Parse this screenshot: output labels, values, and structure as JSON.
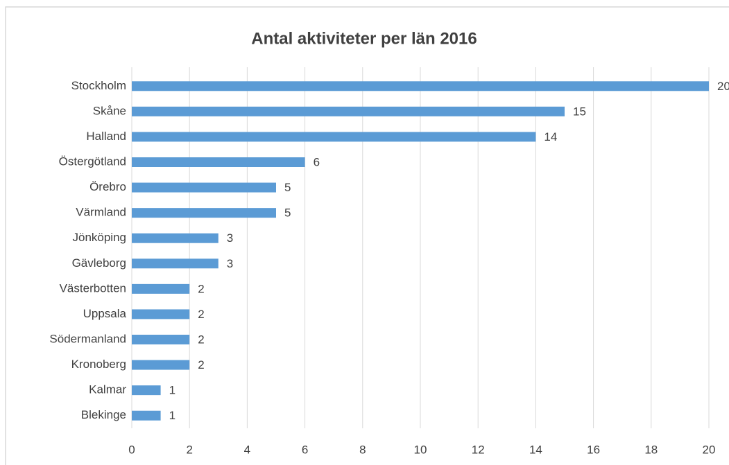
{
  "chart_data": {
    "type": "bar",
    "orientation": "horizontal",
    "title": "Antal aktiviteter per län 2016",
    "categories": [
      "Stockholm",
      "Skåne",
      "Halland",
      "Östergötland",
      "Örebro",
      "Värmland",
      "Jönköping",
      "Gävleborg",
      "Västerbotten",
      "Uppsala",
      "Södermanland",
      "Kronoberg",
      "Kalmar",
      "Blekinge"
    ],
    "values": [
      20,
      15,
      14,
      6,
      5,
      5,
      3,
      3,
      2,
      2,
      2,
      2,
      1,
      1
    ],
    "color": "#5b9bd5",
    "xlim": [
      0,
      20
    ],
    "xticks": [
      0,
      2,
      4,
      6,
      8,
      10,
      12,
      14,
      16,
      18,
      20
    ],
    "grid": true
  }
}
